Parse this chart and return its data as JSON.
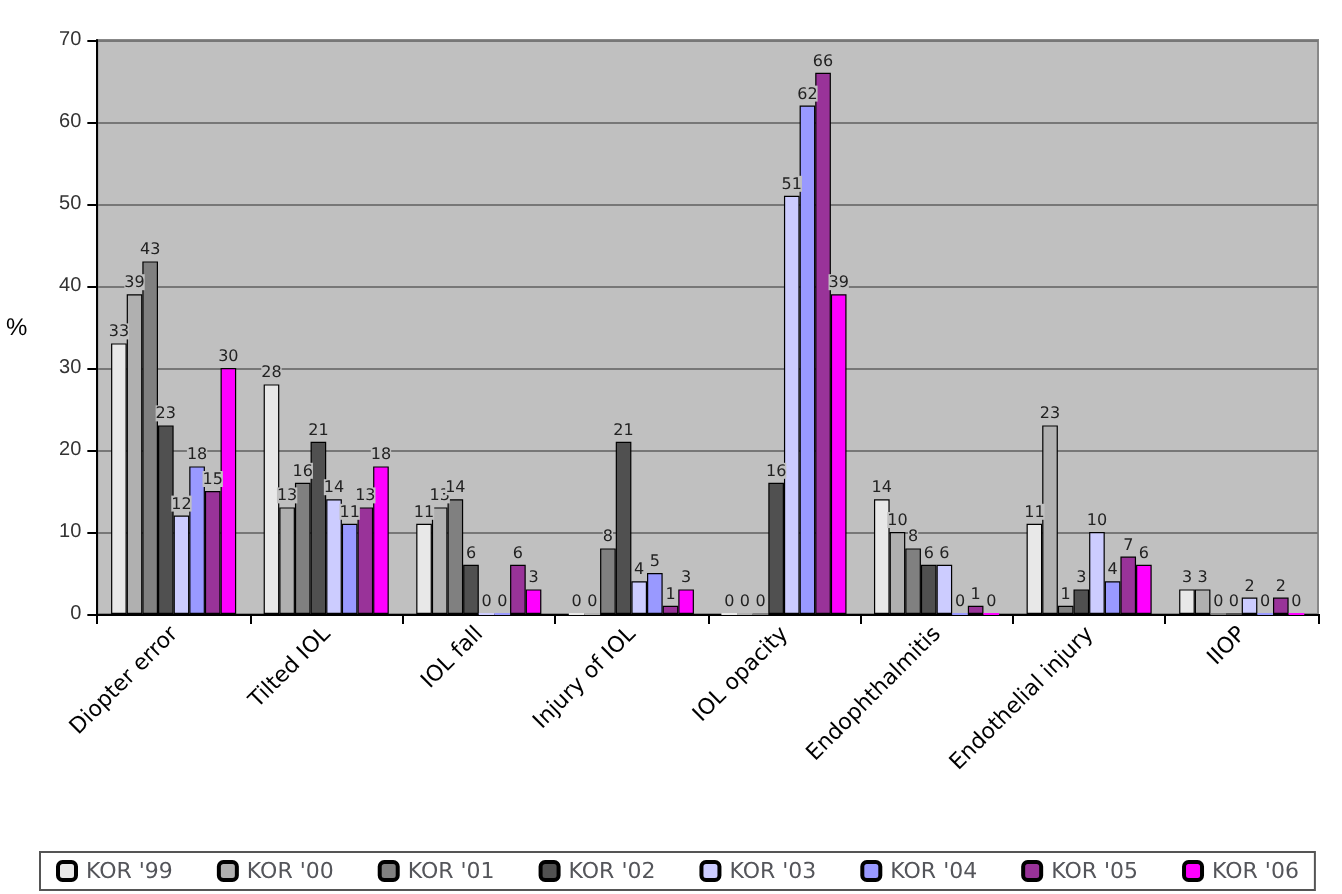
{
  "chart_data": {
    "type": "bar",
    "ylabel": "%",
    "categories": [
      "Diopter error",
      "Tilted IOL",
      "IOL fall",
      "Injury of IOL",
      "IOL opacity",
      "Endophthalmitis",
      "Endothelial injury",
      "IIOP"
    ],
    "series": [
      {
        "name": "KOR '99",
        "color": "#e8e8e8",
        "values": [
          33,
          28,
          11,
          0,
          0,
          14,
          11,
          3
        ]
      },
      {
        "name": "KOR '00",
        "color": "#b0b0b0",
        "values": [
          39,
          13,
          13,
          0,
          0,
          10,
          23,
          3
        ]
      },
      {
        "name": "KOR '01",
        "color": "#808080",
        "values": [
          43,
          16,
          14,
          8,
          0,
          8,
          1,
          0
        ]
      },
      {
        "name": "KOR '02",
        "color": "#505050",
        "values": [
          23,
          21,
          6,
          21,
          16,
          6,
          3,
          0
        ]
      },
      {
        "name": "KOR '03",
        "color": "#ccccff",
        "values": [
          12,
          14,
          0,
          4,
          51,
          6,
          10,
          2
        ]
      },
      {
        "name": "KOR '04",
        "color": "#9999ff",
        "values": [
          18,
          11,
          0,
          5,
          62,
          0,
          4,
          0
        ]
      },
      {
        "name": "KOR '05",
        "color": "#993399",
        "values": [
          15,
          13,
          6,
          1,
          66,
          1,
          7,
          2
        ]
      },
      {
        "name": "KOR '06",
        "color": "#ff00ff",
        "values": [
          30,
          18,
          3,
          3,
          39,
          0,
          6,
          0
        ]
      }
    ],
    "ylim": [
      0,
      70
    ],
    "yticks": [
      0,
      10,
      20,
      30,
      40,
      50,
      60,
      70
    ],
    "grid": "y",
    "legend": "bottom",
    "data_labels": true
  }
}
